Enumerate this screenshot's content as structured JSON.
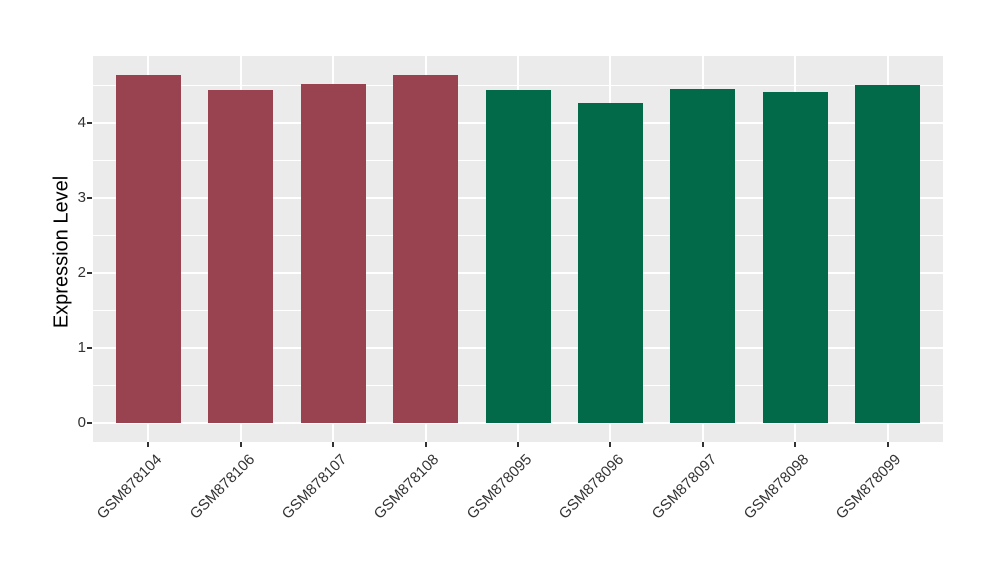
{
  "chart_data": {
    "type": "bar",
    "title": "",
    "xlabel": "",
    "ylabel": "Expression Level",
    "categories": [
      "GSM878104",
      "GSM878106",
      "GSM878107",
      "GSM878108",
      "GSM878095",
      "GSM878096",
      "GSM878097",
      "GSM878098",
      "GSM878099"
    ],
    "values": [
      4.65,
      4.44,
      4.52,
      4.65,
      4.45,
      4.27,
      4.46,
      4.42,
      4.51
    ],
    "groups": [
      "group1",
      "group1",
      "group1",
      "group1",
      "group2",
      "group2",
      "group2",
      "group2",
      "group2"
    ],
    "group_colors": {
      "group1": "#9A4350",
      "group2": "#026A48"
    },
    "bar_colors": [
      "#9A4350",
      "#9A4350",
      "#9A4350",
      "#9A4350",
      "#026A48",
      "#026A48",
      "#026A48",
      "#026A48",
      "#026A48"
    ],
    "ylim": [
      -0.25,
      4.9
    ],
    "yticks": [
      0,
      1,
      2,
      3,
      4
    ],
    "minor_yticks": [
      0.5,
      1.5,
      2.5,
      3.5,
      4.5
    ],
    "x_tick_angle_deg": 45,
    "grid": "on",
    "legend": "none",
    "panel_bg": "#EBEBEB",
    "grid_color": "#FFFFFF",
    "axis_text_color": "#333333"
  }
}
